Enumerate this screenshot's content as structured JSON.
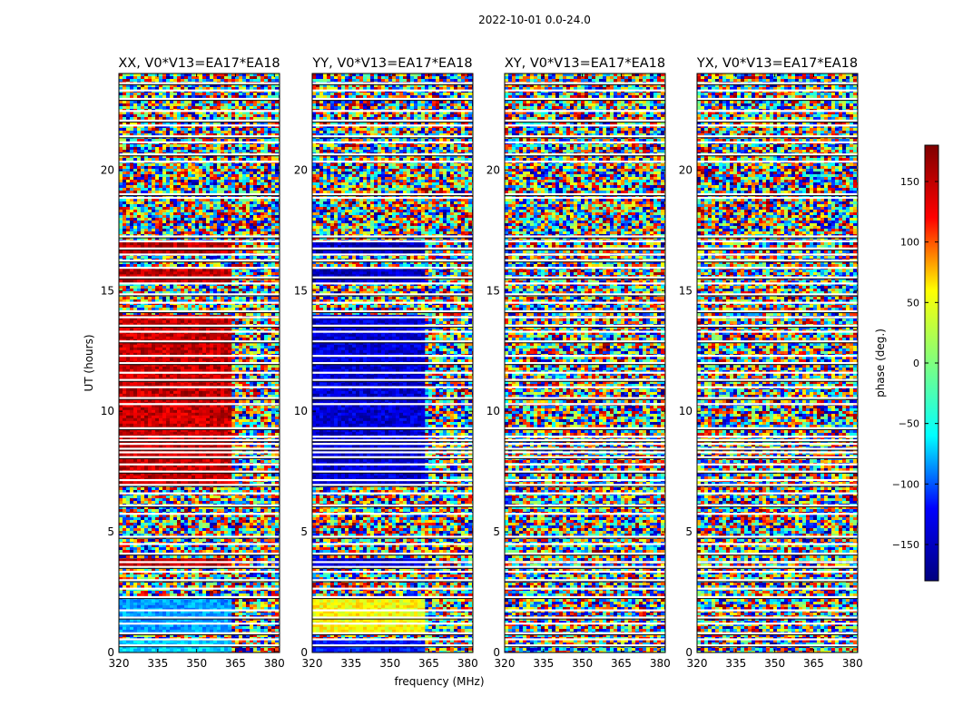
{
  "figure": {
    "suptitle": "2022-10-01 0.0-24.0",
    "xlabel": "frequency (MHz)",
    "ylabel": "UT (hours)"
  },
  "colorbar": {
    "label": "phase (deg.)",
    "ticks": [
      "150",
      "100",
      "50",
      "0",
      "−50",
      "−100",
      "−150"
    ],
    "tick_values": [
      150,
      100,
      50,
      0,
      -50,
      -100,
      -150
    ],
    "range": [
      -180,
      180
    ],
    "colormap": "jet",
    "colors": [
      "#00007f",
      "#0000ff",
      "#00ffff",
      "#7fff7f",
      "#ffff00",
      "#ff0000",
      "#7f0000"
    ]
  },
  "chart_data": {
    "type": "heatmap",
    "title": "2022-10-01 0.0-24.0",
    "xlabel": "frequency (MHz)",
    "ylabel": "UT (hours)",
    "xlim": [
      320,
      382
    ],
    "ylim": [
      0,
      24
    ],
    "x_ticks": [
      "320",
      "335",
      "350",
      "365",
      "380"
    ],
    "x_tick_values": [
      320,
      335,
      350,
      365,
      380
    ],
    "y_ticks": [
      "0",
      "5",
      "10",
      "15",
      "20"
    ],
    "y_tick_values": [
      0,
      5,
      10,
      15,
      20
    ],
    "value_label": "phase (deg.)",
    "value_range": [
      -180,
      180
    ],
    "flagged_ut_hours": [
      0.3,
      0.55,
      0.8,
      1.2,
      1.45,
      1.75,
      2.3,
      2.65,
      3.0,
      3.35,
      3.55,
      3.75,
      4.1,
      4.5,
      4.8,
      5.75,
      6.1,
      6.6,
      6.95,
      7.15,
      7.5,
      7.8,
      8.1,
      8.3,
      8.45,
      8.65,
      8.8,
      8.95,
      9.3,
      10.3,
      10.55,
      11.0,
      11.3,
      11.6,
      12.0,
      12.3,
      12.9,
      13.3,
      13.55,
      13.9,
      14.15,
      14.5,
      14.85,
      15.3,
      15.55,
      15.95,
      16.25,
      16.5,
      16.75,
      17.05,
      17.25,
      18.85,
      19.0,
      20.35,
      20.65,
      21.15,
      21.4,
      21.85,
      22.05,
      22.45,
      22.95,
      23.3,
      23.6
    ],
    "panels": [
      {
        "title": "XX, V0*V13=EA17*EA18",
        "coherent_regions": [
          {
            "ut": [
              7.0,
              14.0
            ],
            "freq": [
              320,
              363
            ],
            "phase": 155
          },
          {
            "ut": [
              15.4,
              15.9
            ],
            "freq": [
              320,
              363
            ],
            "phase": 160
          },
          {
            "ut": [
              16.6,
              17.0
            ],
            "freq": [
              320,
              363
            ],
            "phase": 160
          },
          {
            "ut": [
              3.6,
              3.9
            ],
            "freq": [
              320,
              363
            ],
            "phase": 160
          },
          {
            "ut": [
              0.9,
              2.3
            ],
            "freq": [
              320,
              363
            ],
            "phase": -80
          },
          {
            "ut": [
              0.0,
              0.5
            ],
            "freq": [
              320,
              363
            ],
            "phase": -60
          }
        ]
      },
      {
        "title": "YY, V0*V13=EA17*EA18",
        "coherent_regions": [
          {
            "ut": [
              7.0,
              14.0
            ],
            "freq": [
              320,
              363
            ],
            "phase": -150
          },
          {
            "ut": [
              15.4,
              15.9
            ],
            "freq": [
              320,
              363
            ],
            "phase": -155
          },
          {
            "ut": [
              16.6,
              17.0
            ],
            "freq": [
              320,
              363
            ],
            "phase": -155
          },
          {
            "ut": [
              3.6,
              3.9
            ],
            "freq": [
              320,
              363
            ],
            "phase": -150
          },
          {
            "ut": [
              0.9,
              2.3
            ],
            "freq": [
              320,
              363
            ],
            "phase": 45
          },
          {
            "ut": [
              0.0,
              0.5
            ],
            "freq": [
              320,
              363
            ],
            "phase": -130
          }
        ]
      },
      {
        "title": "XY, V0*V13=EA17*EA18",
        "coherent_regions": []
      },
      {
        "title": "YX, V0*V13=EA17*EA18",
        "coherent_regions": []
      }
    ]
  }
}
